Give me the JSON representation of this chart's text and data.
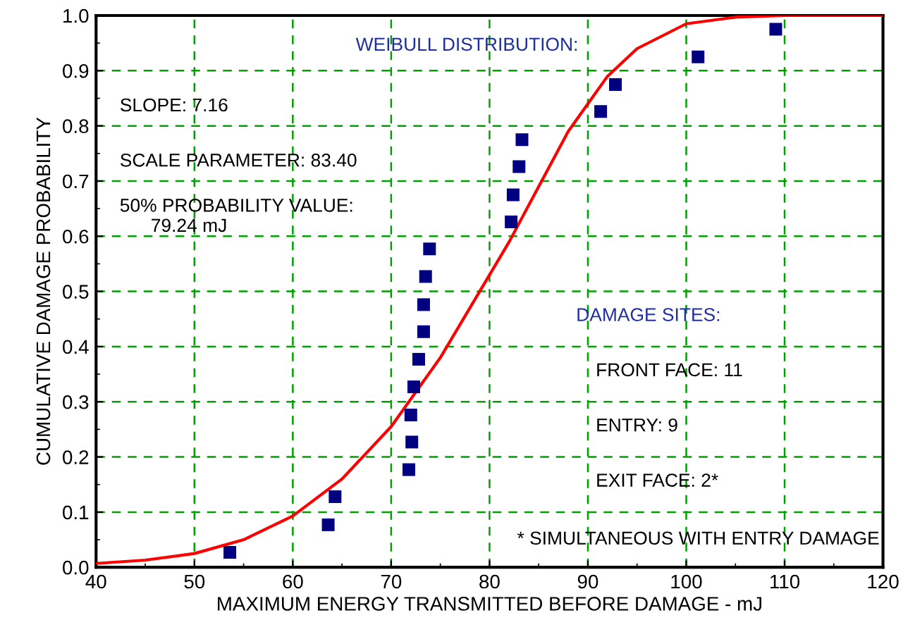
{
  "chart_data": {
    "type": "scatter",
    "xlabel": "MAXIMUM ENERGY TRANSMITTED BEFORE DAMAGE - mJ",
    "ylabel": "CUMULATIVE DAMAGE PROBABILITY",
    "xlim": [
      40,
      120
    ],
    "xticks": [
      40,
      50,
      60,
      70,
      80,
      90,
      100,
      110,
      120
    ],
    "ylim": [
      0,
      1
    ],
    "yticks": [
      {
        "value": 0,
        "label": "0.0"
      },
      0.1,
      0.2,
      0.3,
      0.4,
      0.5,
      0.6,
      0.7,
      0.8,
      0.9,
      {
        "value": 1,
        "label": "1.0"
      }
    ],
    "grid": true,
    "legend": false,
    "series": [
      {
        "type": "line",
        "color": "#ff0000",
        "marker": "none",
        "line_style": "solid",
        "x": [
          40,
          45,
          50,
          55,
          60,
          65,
          70,
          75,
          80,
          82,
          85,
          88,
          90,
          92,
          95,
          100,
          105,
          110,
          120
        ],
        "values": [
          0.007,
          0.013,
          0.025,
          0.05,
          0.093,
          0.16,
          0.255,
          0.38,
          0.53,
          0.59,
          0.69,
          0.79,
          0.84,
          0.89,
          0.94,
          0.985,
          0.997,
          1.0,
          1.0
        ]
      },
      {
        "color": "#000080",
        "marker": "square",
        "x": [
          53.6,
          63.6,
          64.3,
          71.8,
          72.1,
          72.0,
          72.3,
          72.8,
          73.3,
          73.3,
          73.5,
          73.9,
          82.2,
          82.4,
          83.0,
          83.3,
          91.3,
          92.8,
          101.2,
          109.1
        ],
        "values": [
          0.027,
          0.077,
          0.128,
          0.177,
          0.227,
          0.276,
          0.327,
          0.377,
          0.427,
          0.476,
          0.527,
          0.577,
          0.626,
          0.675,
          0.726,
          0.775,
          0.826,
          0.875,
          0.925,
          0.975
        ]
      }
    ],
    "annotations": [
      "WEIBULL DISTRIBUTION:",
      "SLOPE: 7.16",
      "SCALE PARAMETER: 83.40",
      "50% PROBABILITY VALUE:\n      79.24 mJ",
      "DAMAGE SITES:",
      "FRONT FACE: 11",
      "ENTRY: 9",
      "EXIT FACE: 2*",
      "* SIMULTANEOUS WITH ENTRY DAMAGE"
    ]
  }
}
